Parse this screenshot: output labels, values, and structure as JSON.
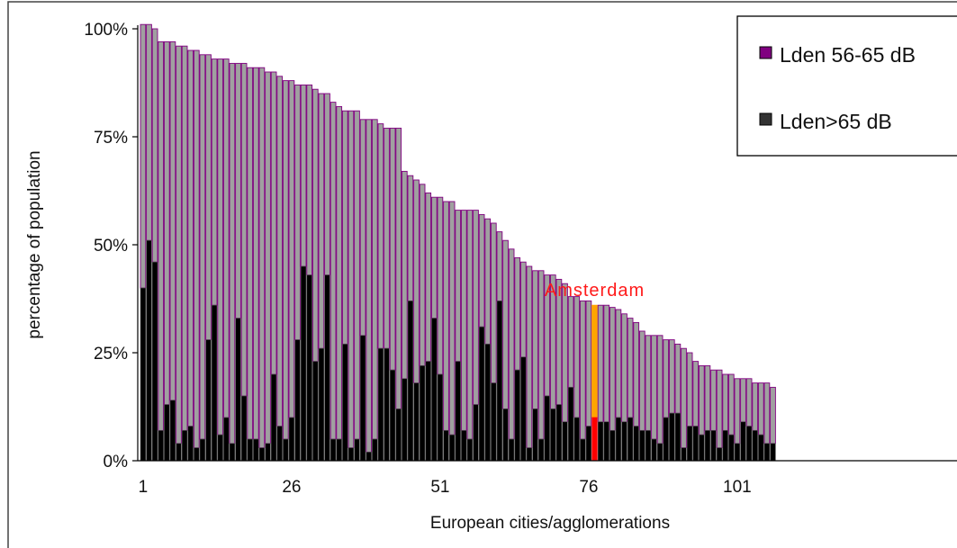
{
  "chart_data": {
    "type": "bar",
    "stacked": true,
    "ylabel": "percentage of population",
    "xlabel": "European cities/agglomerations",
    "ylim": [
      0,
      100
    ],
    "yticks": [
      "0%",
      "25%",
      "50%",
      "75%",
      "100%"
    ],
    "ytick_values": [
      0,
      25,
      50,
      75,
      100
    ],
    "xtick_labels": [
      "1",
      "26",
      "51",
      "76",
      "101"
    ],
    "xtick_positions": [
      1,
      26,
      51,
      76,
      101
    ],
    "legend": {
      "placement": "top-right",
      "entries": [
        {
          "label": "Lden 56-65 dB",
          "color": "#800080"
        },
        {
          "label": "Lden>65 dB",
          "color": "#333333"
        }
      ]
    },
    "colors": {
      "upper_fill": "#a0a0a0",
      "upper_edge": "#800080",
      "lower_fill": "#000000",
      "highlight_upper": "#ffa500",
      "highlight_lower": "#ff0000"
    },
    "annotation": {
      "text": "Amsterdam",
      "city_index": 77
    },
    "totals": [
      101,
      101,
      100,
      97,
      97,
      97,
      96,
      96,
      95,
      95,
      94,
      94,
      93,
      93,
      93,
      92,
      92,
      92,
      91,
      91,
      91,
      90,
      90,
      89,
      88,
      88,
      87,
      87,
      87,
      86,
      85,
      85,
      83,
      82,
      81,
      81,
      81,
      79,
      79,
      79,
      78,
      77,
      77,
      77,
      67,
      66,
      65,
      64,
      62,
      61,
      61,
      60,
      60,
      58,
      58,
      58,
      58,
      57,
      56,
      55,
      53,
      51,
      49,
      47,
      46,
      45,
      44,
      44,
      43,
      43,
      42,
      41,
      38,
      38,
      37,
      37,
      36,
      36,
      36,
      35.5,
      35,
      34,
      33,
      32,
      30,
      29,
      29,
      29,
      28,
      28,
      27,
      26,
      25,
      23,
      22,
      22,
      21,
      21,
      20,
      20,
      19,
      19,
      19,
      18,
      18,
      18,
      17
    ],
    "high_values": [
      40,
      51,
      46,
      7,
      13,
      14,
      4,
      7,
      8,
      3,
      5,
      28,
      36,
      6,
      10,
      4,
      33,
      15,
      5,
      5,
      3,
      4,
      20,
      8,
      5,
      10,
      28,
      45,
      43,
      23,
      26,
      43,
      5,
      5,
      27,
      3,
      5,
      29,
      2,
      5,
      26,
      26,
      21,
      12,
      19,
      37,
      18,
      22,
      23,
      33,
      20,
      7,
      6,
      23,
      7,
      5,
      13,
      31,
      27,
      18,
      37,
      12,
      5,
      21,
      24,
      3,
      12,
      5,
      15,
      12,
      13,
      9,
      17,
      10,
      5,
      8,
      10,
      9,
      9,
      7,
      10,
      9,
      10,
      8,
      7,
      7,
      5,
      4,
      10,
      11,
      11,
      3,
      8,
      8,
      6,
      7,
      7,
      3,
      7,
      6,
      4,
      9,
      8,
      7,
      6,
      4,
      4
    ]
  }
}
